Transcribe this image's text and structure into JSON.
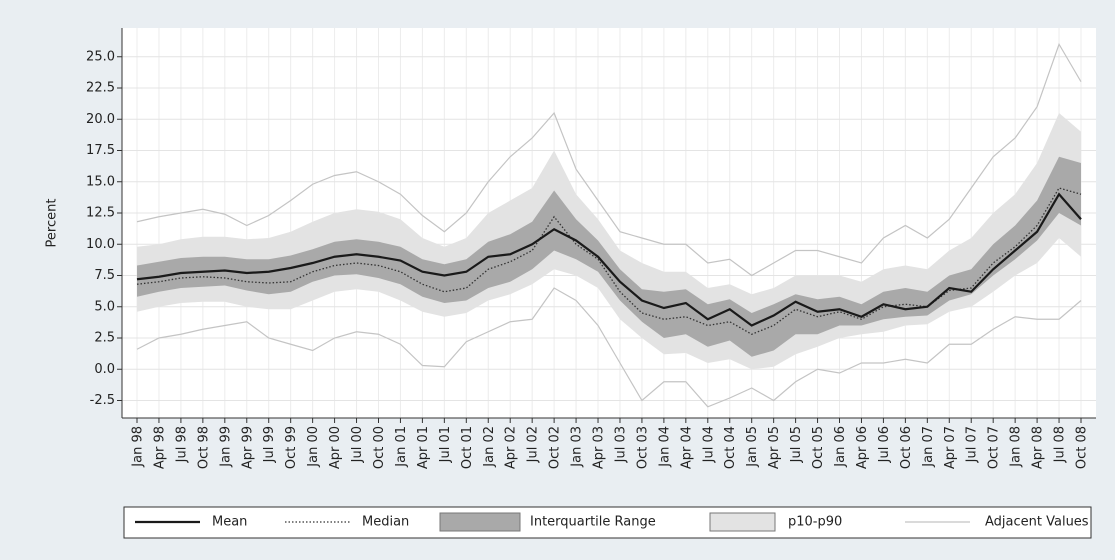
{
  "chart_data": {
    "type": "fan",
    "y_label": "Percent",
    "categories": [
      "Jan 98",
      "Apr 98",
      "Jul 98",
      "Oct 98",
      "Jan 99",
      "Apr 99",
      "Jul 99",
      "Oct 99",
      "Jan 00",
      "Apr 00",
      "Jul 00",
      "Oct 00",
      "Jan 01",
      "Apr 01",
      "Jul 01",
      "Oct 01",
      "Jan 02",
      "Apr 02",
      "Jul 02",
      "Oct 02",
      "Jan 03",
      "Apr 03",
      "Jul 03",
      "Oct 03",
      "Jan 04",
      "Apr 04",
      "Jul 04",
      "Oct 04",
      "Jan 05",
      "Apr 05",
      "Jul 05",
      "Oct 05",
      "Jan 06",
      "Apr 06",
      "Jul 06",
      "Oct 06",
      "Jan 07",
      "Apr 07",
      "Jul 07",
      "Oct 07",
      "Jan 08",
      "Apr 08",
      "Jul 08",
      "Oct 08"
    ],
    "ylim": [
      -3.9,
      27.3
    ],
    "yticks": [
      -2.5,
      {
        "value": 0,
        "label": "0.0"
      },
      2.5,
      {
        "value": 5,
        "label": "5.0"
      },
      7.5,
      {
        "value": 10,
        "label": "10.0"
      },
      12.5,
      {
        "value": 15,
        "label": "15.0"
      },
      17.5,
      {
        "value": 20,
        "label": "20.0"
      },
      22.5,
      {
        "value": 25,
        "label": "25.0"
      }
    ],
    "grid": true,
    "legend": "bottom",
    "series": [
      {
        "name": "p10-p90",
        "style": "band",
        "color": "#e3e3e3",
        "lower": [
          4.6,
          5.0,
          5.3,
          5.4,
          5.4,
          5.0,
          4.8,
          4.8,
          5.5,
          6.2,
          6.4,
          6.2,
          5.5,
          4.6,
          4.2,
          4.5,
          5.5,
          6.0,
          6.8,
          8.0,
          7.5,
          6.5,
          4.0,
          2.5,
          1.2,
          1.3,
          0.5,
          0.8,
          0.0,
          0.2,
          1.2,
          1.8,
          2.5,
          2.8,
          3.0,
          3.5,
          3.6,
          4.6,
          5.0,
          6.2,
          7.5,
          8.5,
          10.5,
          9.0
        ],
        "upper": [
          9.8,
          10.0,
          10.4,
          10.6,
          10.6,
          10.4,
          10.5,
          11.0,
          11.8,
          12.5,
          12.8,
          12.6,
          12.0,
          10.5,
          9.8,
          10.5,
          12.5,
          13.5,
          14.5,
          17.5,
          14.0,
          12.0,
          9.5,
          8.5,
          7.8,
          7.8,
          6.5,
          6.8,
          6.0,
          6.5,
          7.5,
          7.5,
          7.5,
          7.0,
          8.0,
          8.3,
          8.0,
          9.5,
          10.5,
          12.5,
          14.0,
          16.5,
          20.5,
          19.0
        ]
      },
      {
        "name": "Interquartile Range",
        "style": "band",
        "color": "#a9a9a9",
        "lower": [
          5.8,
          6.2,
          6.5,
          6.6,
          6.7,
          6.3,
          6.0,
          6.2,
          7.0,
          7.5,
          7.6,
          7.3,
          6.8,
          5.8,
          5.3,
          5.5,
          6.5,
          7.0,
          8.0,
          9.5,
          8.8,
          7.8,
          5.5,
          3.8,
          2.5,
          2.8,
          1.8,
          2.3,
          1.0,
          1.5,
          2.8,
          2.8,
          3.5,
          3.5,
          4.0,
          4.2,
          4.3,
          5.5,
          6.0,
          7.5,
          8.8,
          10.3,
          12.5,
          11.5
        ],
        "upper": [
          8.3,
          8.6,
          8.9,
          9.0,
          9.0,
          8.8,
          8.8,
          9.1,
          9.6,
          10.2,
          10.4,
          10.2,
          9.8,
          8.8,
          8.4,
          8.8,
          10.2,
          10.8,
          11.8,
          14.3,
          12.0,
          10.3,
          8.0,
          6.4,
          6.2,
          6.4,
          5.2,
          5.6,
          4.5,
          5.2,
          6.0,
          5.6,
          5.8,
          5.2,
          6.2,
          6.5,
          6.2,
          7.5,
          8.0,
          10.0,
          11.5,
          13.5,
          17.0,
          16.5
        ]
      },
      {
        "name": "Adjacent Values",
        "style": "thin",
        "color": "#c4c4c4",
        "lower": [
          1.6,
          2.5,
          2.8,
          3.2,
          3.5,
          3.8,
          2.5,
          2.0,
          1.5,
          2.5,
          3.0,
          2.8,
          2.0,
          0.3,
          0.2,
          2.2,
          3.0,
          3.8,
          4.0,
          6.5,
          5.5,
          3.5,
          0.5,
          -2.5,
          -1.0,
          -1.0,
          -3.0,
          -2.3,
          -1.5,
          -2.5,
          -1.0,
          0.0,
          -0.3,
          0.5,
          0.5,
          0.8,
          0.5,
          2.0,
          2.0,
          3.2,
          4.2,
          4.0,
          4.0,
          5.5
        ],
        "upper": [
          11.8,
          12.2,
          12.5,
          12.8,
          12.4,
          11.5,
          12.3,
          13.5,
          14.8,
          15.5,
          15.8,
          15.0,
          14.0,
          12.3,
          11.0,
          12.5,
          15.0,
          17.0,
          18.5,
          20.5,
          16.0,
          13.5,
          11.0,
          10.5,
          10.0,
          10.0,
          8.5,
          8.8,
          7.5,
          8.5,
          9.5,
          9.5,
          9.0,
          8.5,
          10.5,
          11.5,
          10.5,
          12.0,
          14.5,
          17.0,
          18.5,
          21.0,
          26.0,
          23.0
        ]
      },
      {
        "name": "Median",
        "style": "dotted",
        "color": "#333333",
        "values": [
          6.8,
          7.0,
          7.3,
          7.4,
          7.3,
          7.0,
          6.9,
          7.0,
          7.8,
          8.3,
          8.5,
          8.3,
          7.8,
          6.8,
          6.2,
          6.5,
          8.0,
          8.6,
          9.5,
          12.2,
          10.0,
          8.8,
          6.2,
          4.5,
          4.0,
          4.2,
          3.5,
          3.8,
          2.8,
          3.5,
          4.8,
          4.2,
          4.6,
          4.0,
          5.0,
          5.2,
          5.0,
          6.3,
          6.5,
          8.5,
          9.8,
          11.5,
          14.5,
          14.0
        ]
      },
      {
        "name": "Mean",
        "style": "solid",
        "color": "#1a1a1a",
        "values": [
          7.2,
          7.4,
          7.7,
          7.8,
          7.9,
          7.7,
          7.8,
          8.1,
          8.5,
          9.0,
          9.2,
          9.0,
          8.7,
          7.8,
          7.5,
          7.8,
          9.0,
          9.2,
          10.0,
          11.2,
          10.3,
          9.0,
          7.0,
          5.5,
          4.9,
          5.3,
          4.0,
          4.8,
          3.5,
          4.3,
          5.4,
          4.6,
          4.8,
          4.2,
          5.2,
          4.8,
          5.0,
          6.5,
          6.2,
          8.0,
          9.5,
          11.0,
          14.0,
          12.0
        ]
      }
    ]
  }
}
